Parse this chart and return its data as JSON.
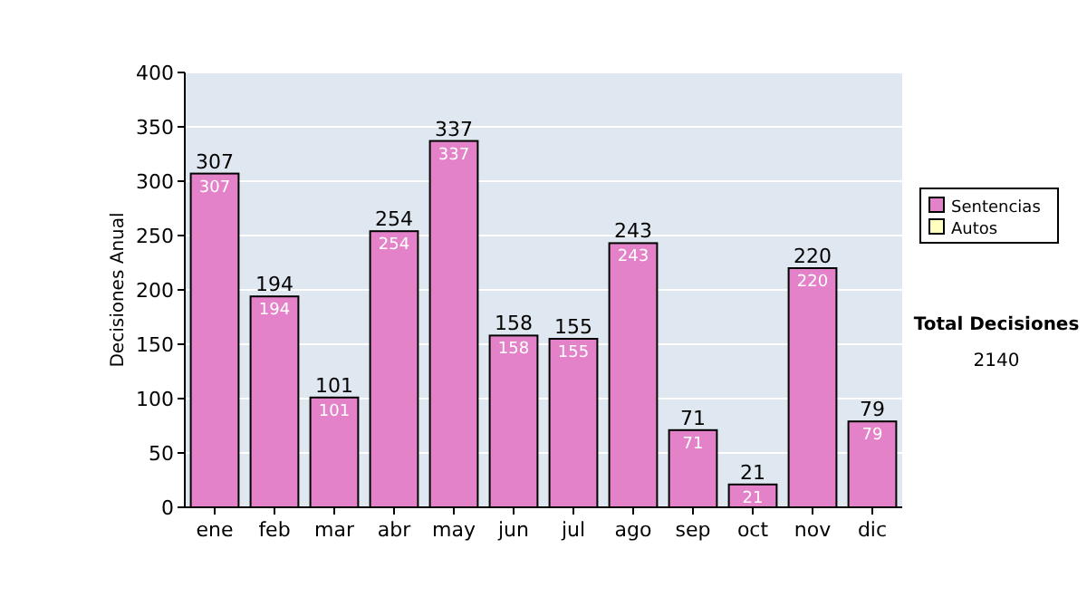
{
  "chart_data": {
    "type": "bar",
    "stacked": true,
    "ylabel": "Decisiones Anual",
    "categories": [
      "ene",
      "feb",
      "mar",
      "abr",
      "may",
      "jun",
      "jul",
      "ago",
      "sep",
      "oct",
      "nov",
      "dic"
    ],
    "series": [
      {
        "name": "Sentencias",
        "color": "#e382c8",
        "values": [
          307,
          194,
          101,
          254,
          337,
          158,
          155,
          243,
          71,
          21,
          220,
          79
        ],
        "value_labels": [
          "307",
          "194",
          "101",
          "254",
          "337",
          "158",
          "155",
          "243",
          "71",
          "21",
          "220",
          "79"
        ]
      },
      {
        "name": "Autos",
        "color": "#ffffc0",
        "values": [
          null,
          null,
          null,
          null,
          null,
          null,
          null,
          null,
          null,
          null,
          null,
          null
        ]
      }
    ],
    "totals": [
      "307",
      "194",
      "101",
      "254",
      "337",
      "158",
      "155",
      "243",
      "71",
      "21",
      "220",
      "79"
    ],
    "ylim": [
      0,
      400
    ],
    "yticks": [
      0,
      50,
      100,
      150,
      200,
      250,
      300,
      350,
      400
    ],
    "grid": "y",
    "legend": "right",
    "annotations": [
      "Total Decisiones",
      "2140"
    ]
  }
}
